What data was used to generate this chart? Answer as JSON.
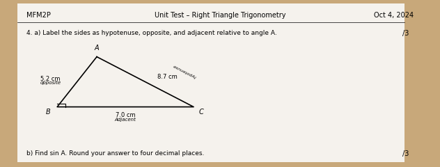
{
  "bg_color": "#c8a87a",
  "paper_color": "#f5f2ed",
  "header_left": "MFM2P",
  "header_center": "Unit Test – Right Triangle Trigonometry",
  "header_right": "Oct 4, 2024",
  "question_text": "4. a) Label the sides as hypotenuse, opposite, and adjacent relative to angle A.",
  "question_marks_a": "/3",
  "question_b": "b) Find sin A. Round your answer to four decimal places.",
  "question_marks_b": "/3",
  "side_AB_label": "5.2 cm",
  "side_AB_sublabel": "opposite",
  "side_BC_label": "7.0 cm",
  "side_BC_sublabel": "Adjacent",
  "side_AC_label": "8.7 cm",
  "side_AC_sublabel": "hypotenuse",
  "vertex_A": "A",
  "vertex_B": "B",
  "vertex_C": "C"
}
